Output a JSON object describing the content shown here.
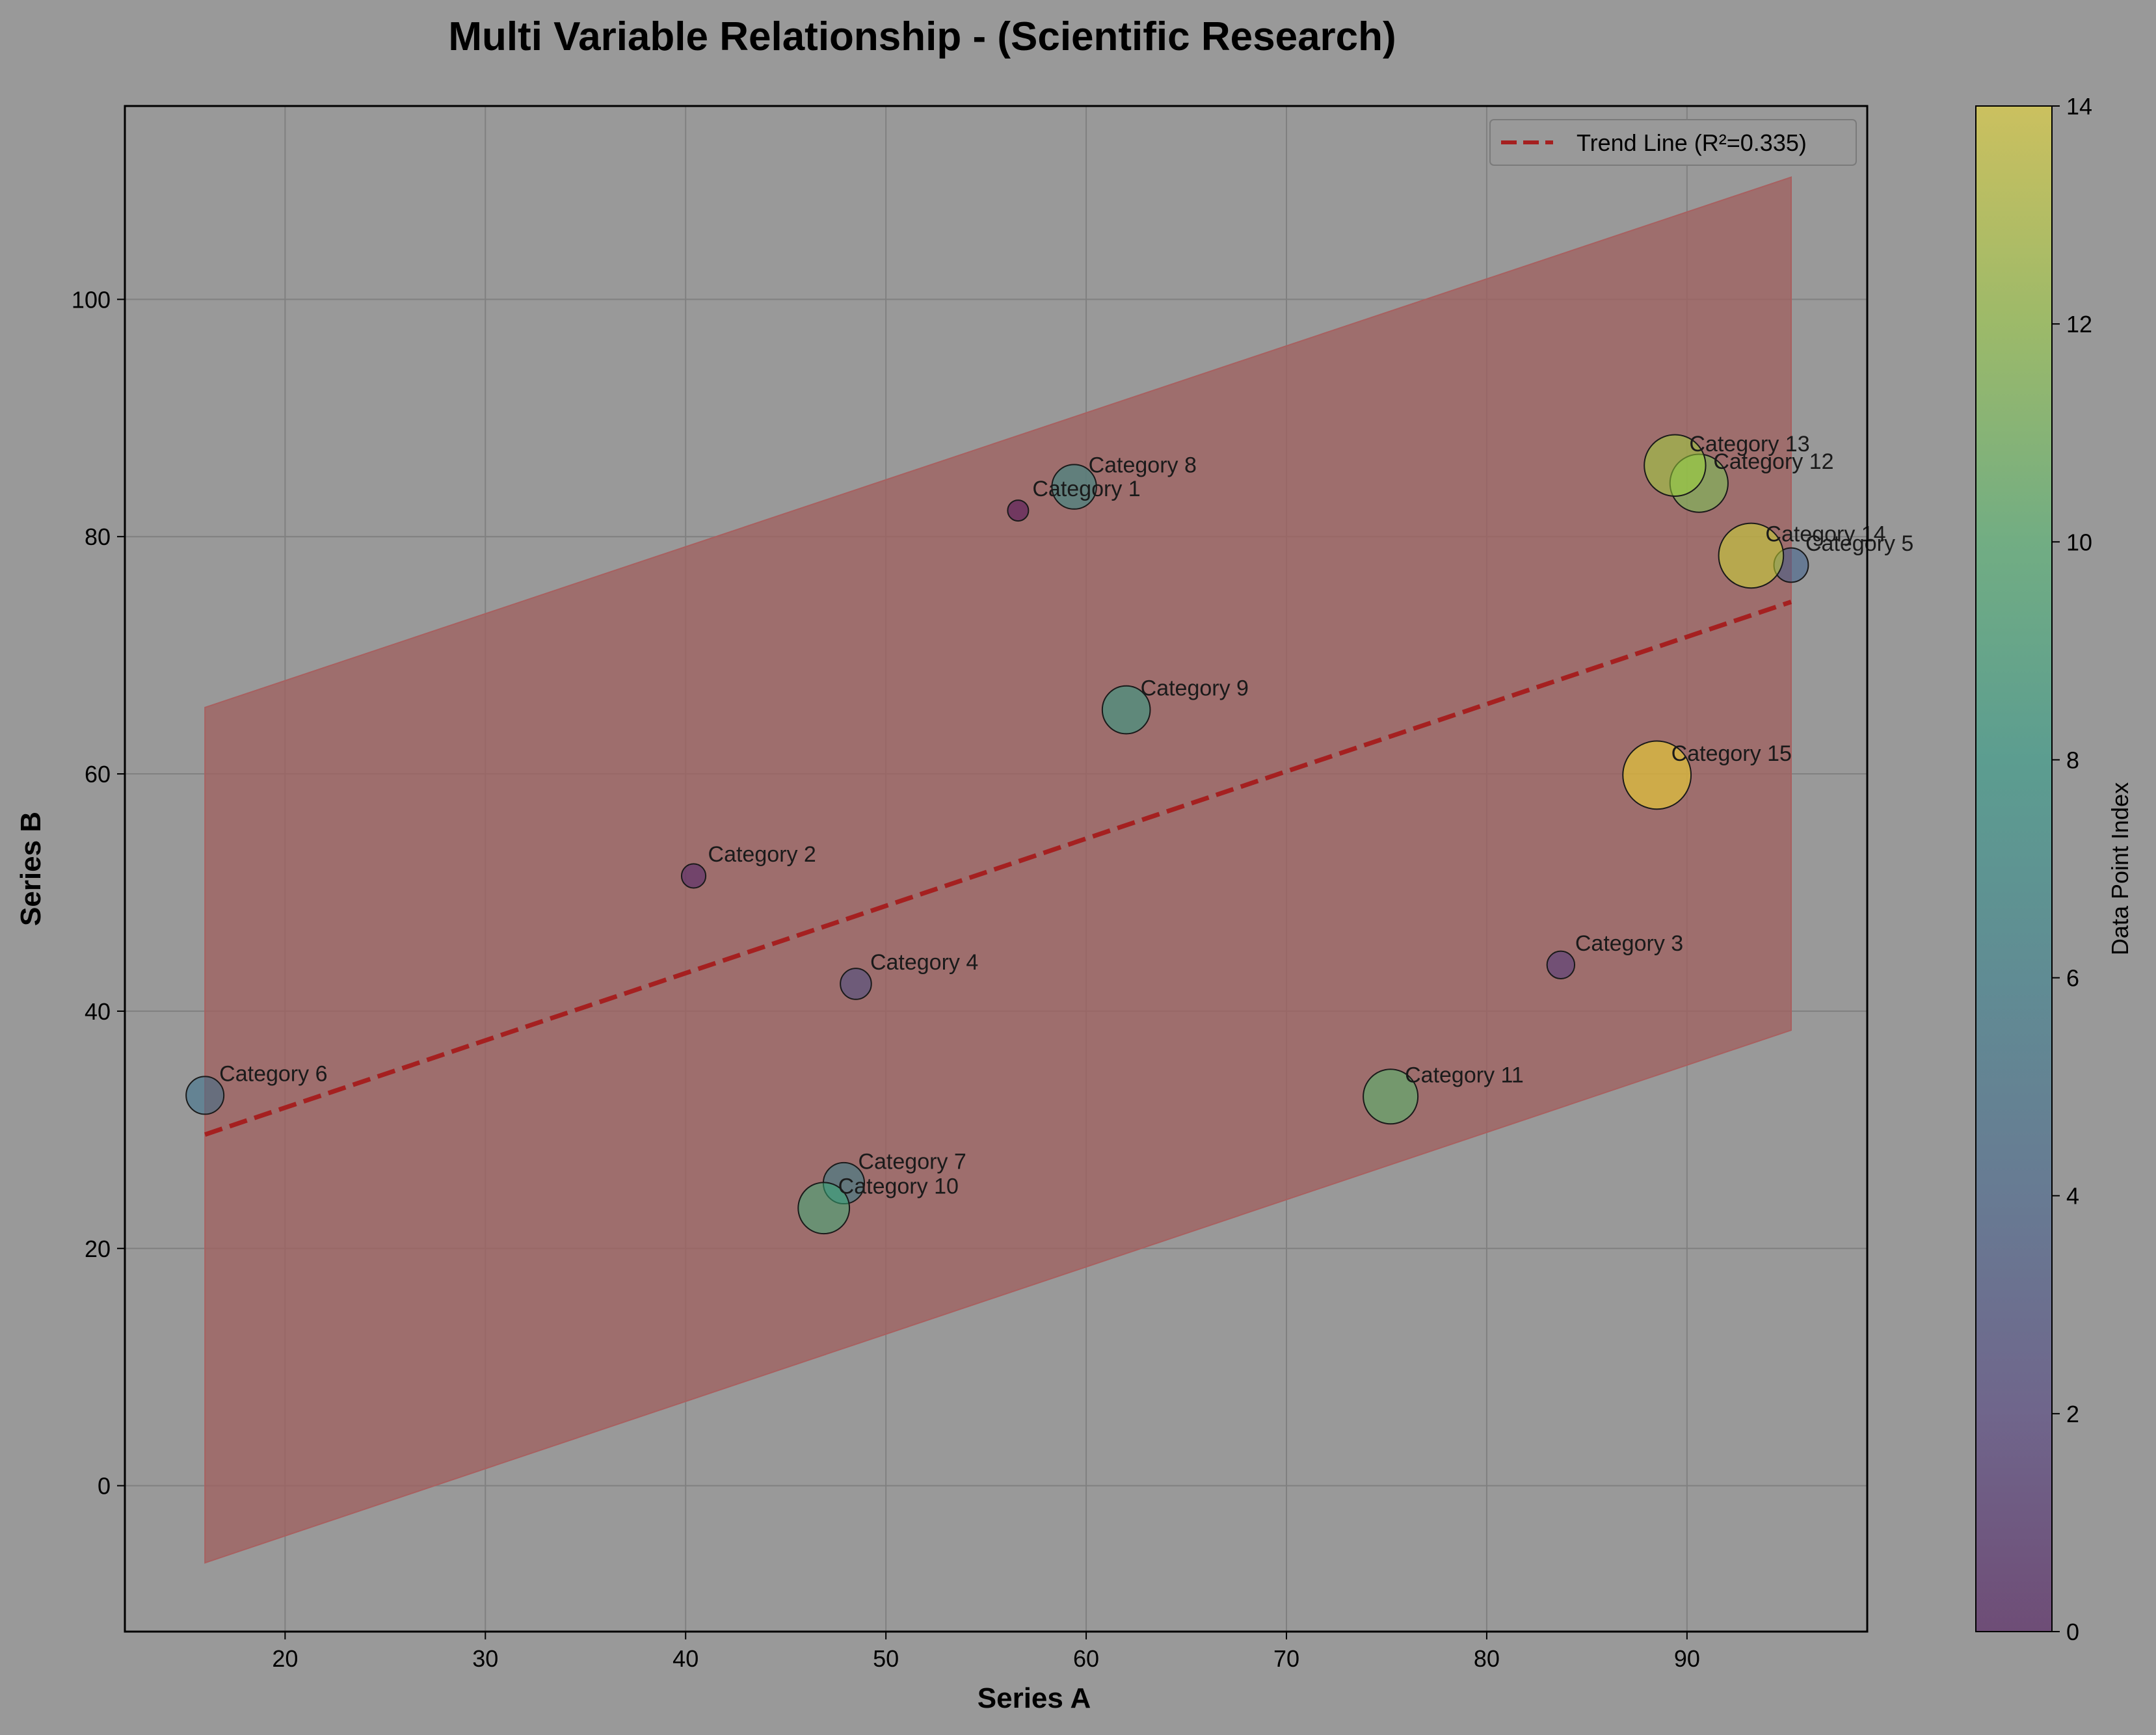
{
  "chart_data": {
    "type": "scatter",
    "title": "Multi Variable Relationship - (Scientific Research)",
    "xlabel": "Series A",
    "ylabel": "Series B",
    "xlim": [
      12,
      99
    ],
    "ylim": [
      -12.3,
      116.3
    ],
    "xticks": [
      20,
      30,
      40,
      50,
      60,
      70,
      80,
      90
    ],
    "yticks": [
      0,
      20,
      40,
      60,
      80,
      100
    ],
    "grid": true,
    "legend": {
      "position": "top-right",
      "label": "Trend Line (R²=0.335)"
    },
    "trend_line": {
      "x": [
        16.0,
        95.2
      ],
      "y": [
        29.6,
        74.5
      ],
      "color": "#a52020",
      "band_upper": [
        65.6,
        110.3
      ],
      "band_lower": [
        -6.5,
        38.4
      ],
      "band_color": "#a0605f"
    },
    "colorbar": {
      "label": "Data Point Index",
      "range": [
        0,
        14
      ],
      "ticks": [
        0,
        2,
        4,
        6,
        8,
        10,
        12,
        14
      ],
      "colormap": [
        "#440154",
        "#46327e",
        "#365c8d",
        "#277f8e",
        "#1fa187",
        "#4ac16d",
        "#a0da39",
        "#fde725"
      ],
      "opacity": 0.5
    },
    "points": [
      {
        "label": "Category 1",
        "x": 56.6,
        "y": 82.2,
        "size": 0,
        "color_index": 0
      },
      {
        "label": "Category 2",
        "x": 40.4,
        "y": 51.4,
        "size": 1,
        "color_index": 1
      },
      {
        "label": "Category 3",
        "x": 83.7,
        "y": 43.9,
        "size": 2,
        "color_index": 2
      },
      {
        "label": "Category 4",
        "x": 48.5,
        "y": 42.3,
        "size": 3,
        "color_index": 3
      },
      {
        "label": "Category 5",
        "x": 95.2,
        "y": 77.6,
        "size": 4,
        "color_index": 4
      },
      {
        "label": "Category 6",
        "x": 16.0,
        "y": 32.9,
        "size": 5,
        "color_index": 5
      },
      {
        "label": "Category 7",
        "x": 47.9,
        "y": 25.5,
        "size": 6,
        "color_index": 6
      },
      {
        "label": "Category 8",
        "x": 59.4,
        "y": 84.2,
        "size": 7,
        "color_index": 7
      },
      {
        "label": "Category 9",
        "x": 62.0,
        "y": 65.4,
        "size": 8,
        "color_index": 8
      },
      {
        "label": "Category 10",
        "x": 46.9,
        "y": 23.4,
        "size": 9,
        "color_index": 9
      },
      {
        "label": "Category 11",
        "x": 75.2,
        "y": 32.8,
        "size": 10,
        "color_index": 10
      },
      {
        "label": "Category 12",
        "x": 90.6,
        "y": 84.5,
        "size": 11,
        "color_index": 11
      },
      {
        "label": "Category 13",
        "x": 89.4,
        "y": 86.0,
        "size": 12,
        "color_index": 12
      },
      {
        "label": "Category 14",
        "x": 93.2,
        "y": 78.4,
        "size": 13,
        "color_index": 13
      },
      {
        "label": "Category 15",
        "x": 88.5,
        "y": 59.9,
        "size": 14,
        "color_index": 14
      }
    ]
  }
}
